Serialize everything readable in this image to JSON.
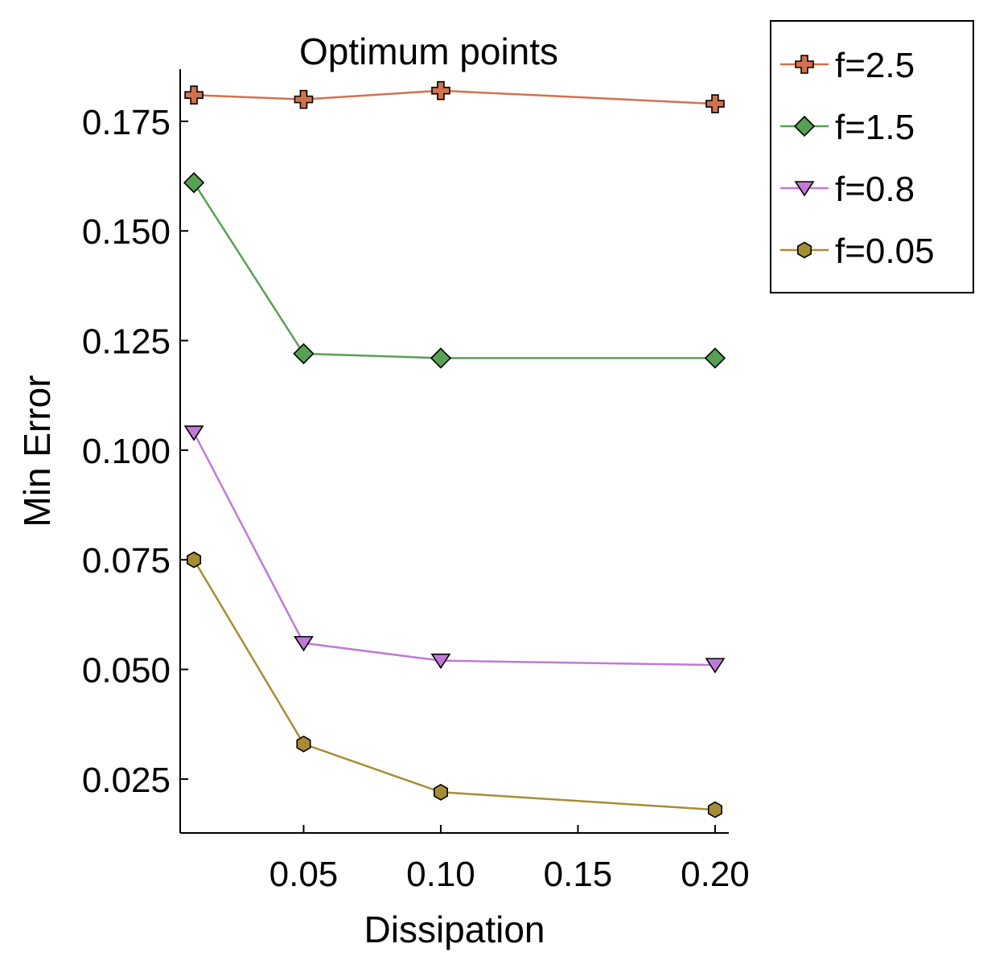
{
  "chart_data": {
    "type": "line",
    "title": "Optimum points",
    "xlabel": "Dissipation",
    "ylabel": "Min Error",
    "xlim": [
      0.005,
      0.205
    ],
    "ylim": [
      0.0127,
      0.1869
    ],
    "x_ticks": [
      0.05,
      0.1,
      0.15,
      0.2
    ],
    "x_tick_labels": [
      "0.05",
      "0.10",
      "0.15",
      "0.20"
    ],
    "y_ticks": [
      0.025,
      0.05,
      0.075,
      0.1,
      0.125,
      0.15,
      0.175
    ],
    "y_tick_labels": [
      "0.025",
      "0.050",
      "0.075",
      "0.100",
      "0.125",
      "0.150",
      "0.175"
    ],
    "grid": false,
    "legend_position": "outside-top-right",
    "x": [
      0.01,
      0.05,
      0.1,
      0.2
    ],
    "series": [
      {
        "name": "f=2.5",
        "values": [
          0.181,
          0.18,
          0.182,
          0.179
        ],
        "color": "#d0724d",
        "marker": "cross"
      },
      {
        "name": "f=1.5",
        "values": [
          0.161,
          0.122,
          0.121,
          0.121
        ],
        "color": "#56a153",
        "marker": "diamond"
      },
      {
        "name": "f=0.8",
        "values": [
          0.104,
          0.056,
          0.052,
          0.051
        ],
        "color": "#c07ad6",
        "marker": "triangle-down"
      },
      {
        "name": "f=0.05",
        "values": [
          0.075,
          0.033,
          0.022,
          0.018
        ],
        "color": "#a68d33",
        "marker": "hexagon"
      }
    ]
  }
}
